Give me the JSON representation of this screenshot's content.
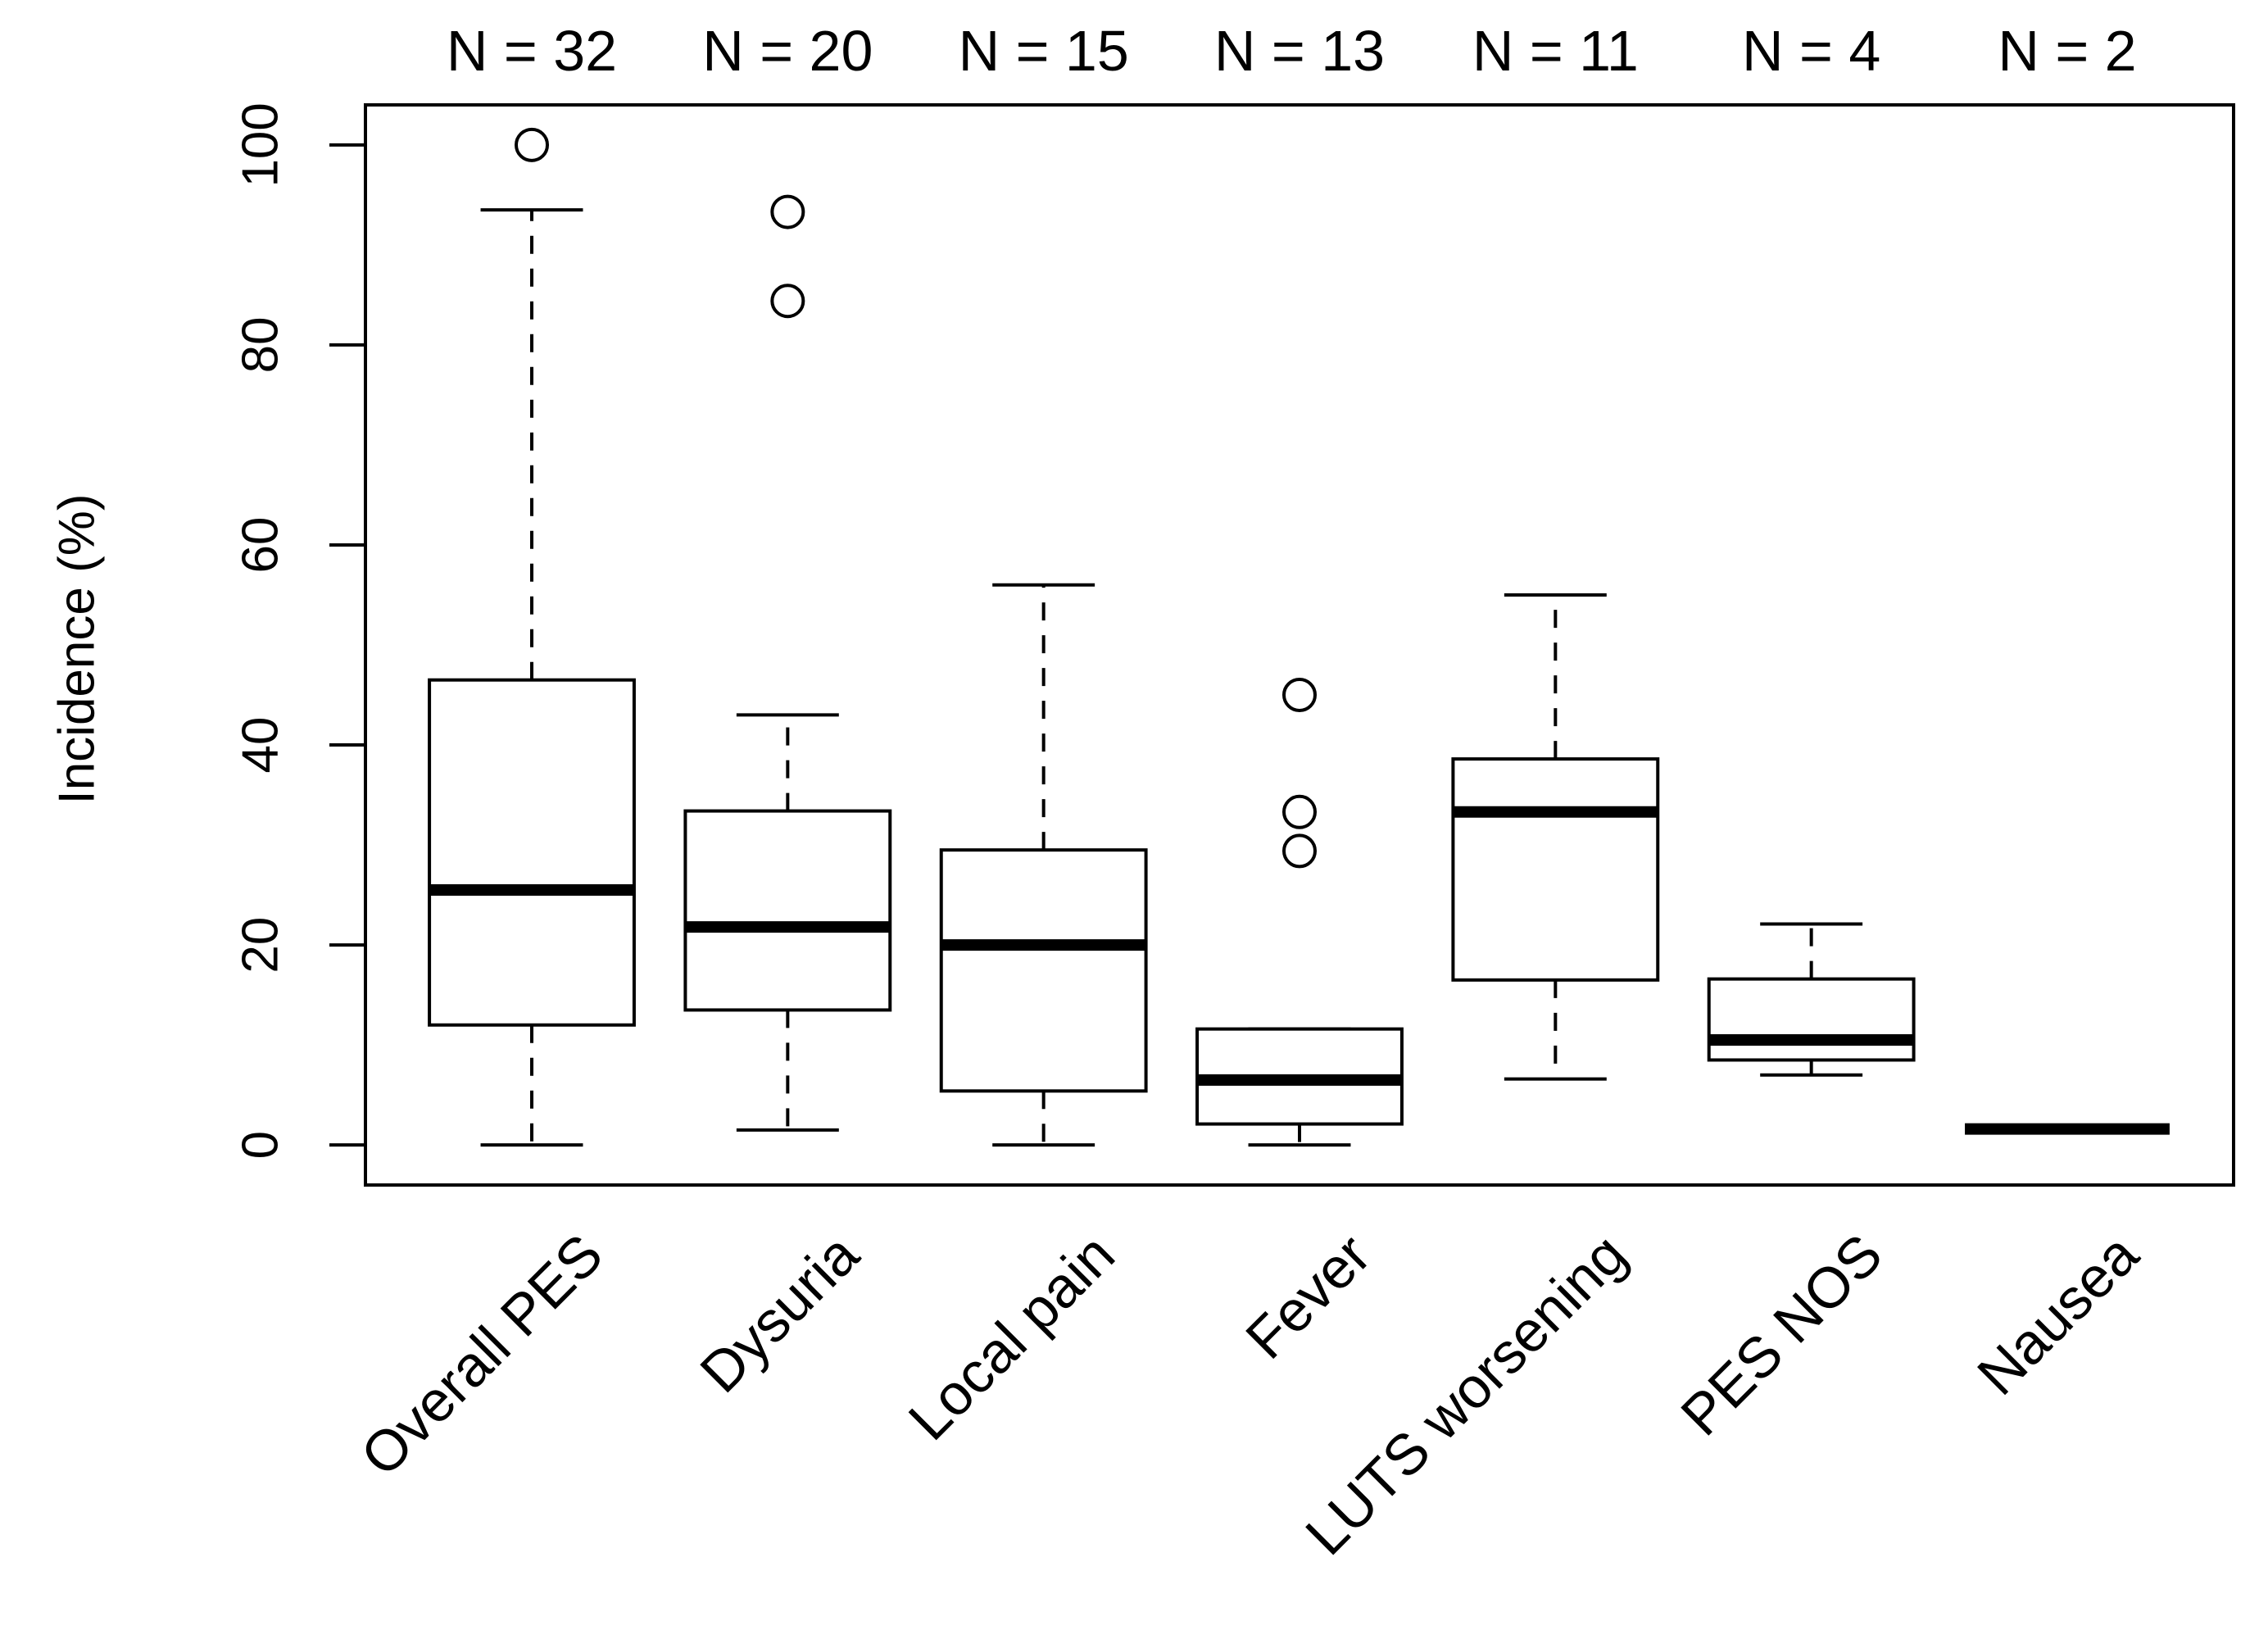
{
  "chart_data": {
    "type": "boxplot",
    "title": "",
    "xlabel": "",
    "ylabel": "Incidence (%)",
    "ylim": [
      -4,
      104
    ],
    "yticks": [
      0,
      20,
      40,
      60,
      80,
      100
    ],
    "ytick_labels": [
      "0",
      "20",
      "40",
      "60",
      "80",
      "100"
    ],
    "categories": [
      "Overall PES",
      "Dysuria",
      "Local pain",
      "Fever",
      "LUTS worsening",
      "PES NOS",
      "Nausea"
    ],
    "group_counts": [
      "N = 32",
      "N = 20",
      "N = 15",
      "N = 13",
      "N = 11",
      "N = 4",
      "N = 2"
    ],
    "grid": false,
    "legend": "none",
    "boxes": [
      {
        "category": "Overall PES",
        "whisker_low": 0,
        "q1": 12,
        "median": 25.5,
        "q3": 46.5,
        "whisker_high": 93.5,
        "outliers": [
          100
        ]
      },
      {
        "category": "Dysuria",
        "whisker_low": 1.5,
        "q1": 13.5,
        "median": 21.8,
        "q3": 33.4,
        "whisker_high": 43,
        "outliers": [
          84.4,
          93.3
        ]
      },
      {
        "category": "Local pain",
        "whisker_low": 0,
        "q1": 5.4,
        "median": 20,
        "q3": 29.5,
        "whisker_high": 56,
        "outliers": []
      },
      {
        "category": "Fever",
        "whisker_low": 0,
        "q1": 2.1,
        "median": 6.5,
        "q3": 11.6,
        "whisker_high": 11.6,
        "outliers": [
          29.4,
          33.3,
          45
        ]
      },
      {
        "category": "LUTS worsening",
        "whisker_low": 6.6,
        "q1": 16.5,
        "median": 33.3,
        "q3": 38.6,
        "whisker_high": 55,
        "outliers": []
      },
      {
        "category": "PES NOS",
        "whisker_low": 7,
        "q1": 8.5,
        "median": 10.5,
        "q3": 16.6,
        "whisker_high": 22.1,
        "outliers": []
      },
      {
        "category": "Nausea",
        "whisker_low": 1.6,
        "q1": 1.6,
        "median": 1.6,
        "q3": 1.6,
        "whisker_high": 1.6,
        "outliers": []
      }
    ]
  }
}
